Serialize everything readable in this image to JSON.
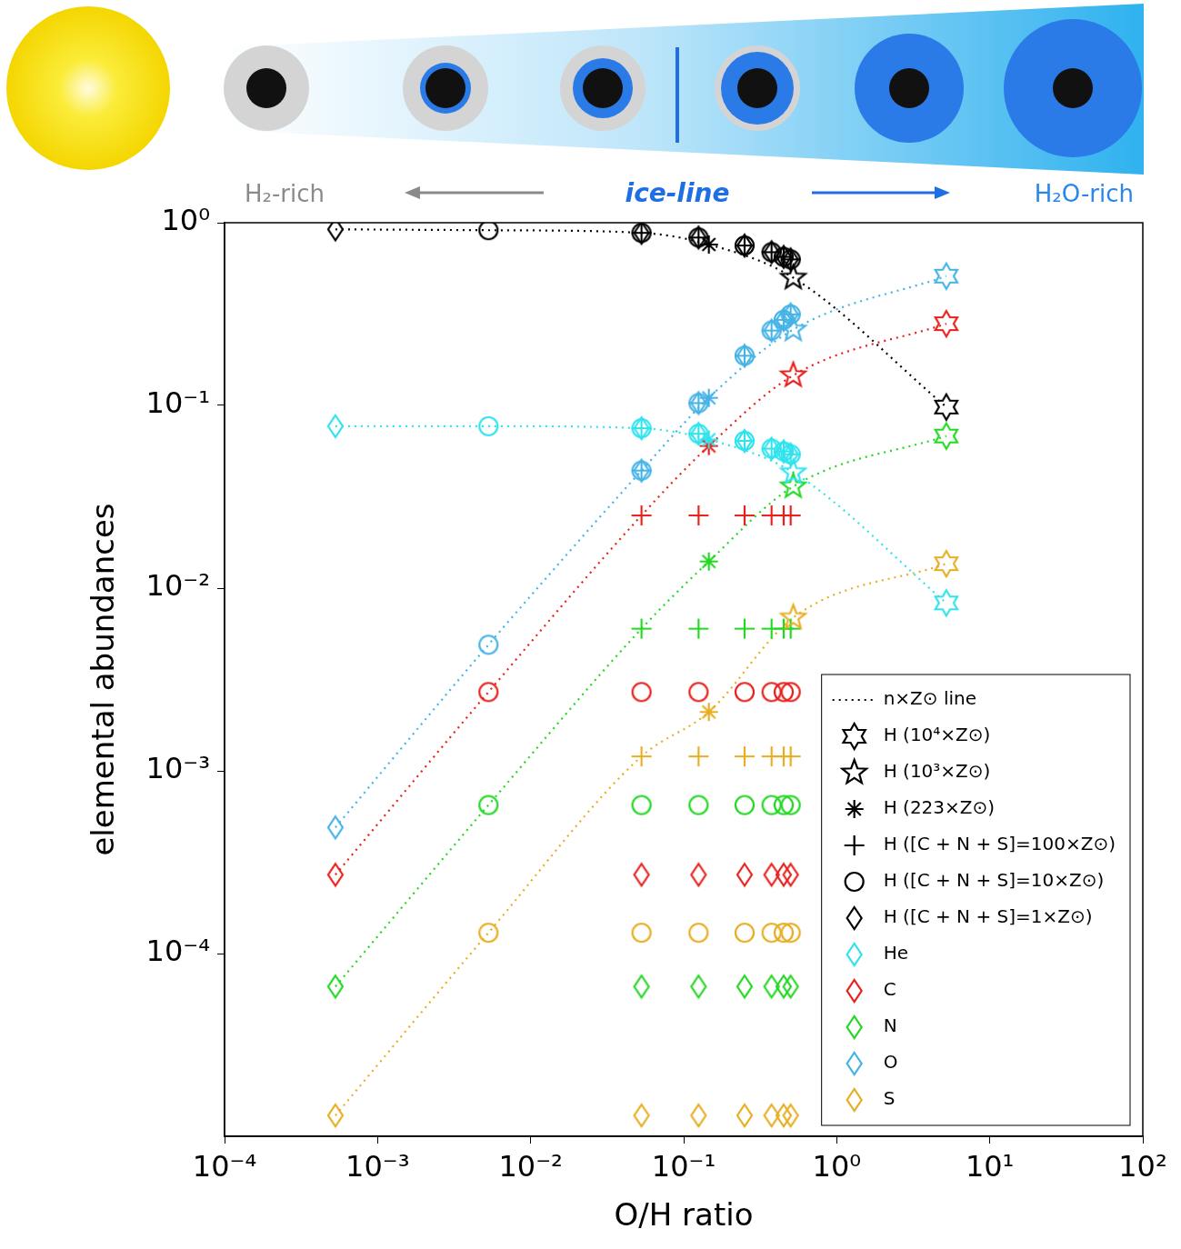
{
  "header": {
    "left_label": "H₂-rich",
    "center_label": "ice-line",
    "right_label": "H₂O-rich"
  },
  "chart_data": {
    "type": "scatter",
    "xlabel": "O/H ratio",
    "ylabel": "elemental abundances",
    "log": true,
    "grid": false,
    "legend": "lower right",
    "xlim": [
      0.0001,
      100
    ],
    "xticks": [
      {
        "value": 0.0001,
        "label": "10⁻⁴"
      },
      {
        "value": 0.001,
        "label": "10⁻³"
      },
      {
        "value": 0.01,
        "label": "10⁻²"
      },
      {
        "value": 0.1,
        "label": "10⁻¹"
      },
      {
        "value": 1,
        "label": "10⁰"
      },
      {
        "value": 10,
        "label": "10¹"
      },
      {
        "value": 100,
        "label": "10²"
      }
    ],
    "ylim": [
      1e-05,
      1
    ],
    "yticks": [
      {
        "value": 0.0001,
        "label": "10⁻⁴"
      },
      {
        "value": 0.001,
        "label": "10⁻³"
      },
      {
        "value": 0.01,
        "label": "10⁻²"
      },
      {
        "value": 0.1,
        "label": "10⁻¹"
      },
      {
        "value": 1,
        "label": "10⁰"
      }
    ],
    "elements": [
      {
        "name": "He",
        "color": "#2fe3ee",
        "marker": "diamond"
      },
      {
        "name": "C",
        "color": "#e8201c",
        "marker": "diamond"
      },
      {
        "name": "N",
        "color": "#22d822",
        "marker": "diamond"
      },
      {
        "name": "O",
        "color": "#45b3e6",
        "marker": "diamond"
      },
      {
        "name": "S",
        "color": "#e8ae22",
        "marker": "diamond"
      }
    ],
    "line": {
      "name": "n×Z⊙ line",
      "line_style": "dotted",
      "color": "#000000",
      "x": [
        0.00053,
        0.0053,
        0.053,
        0.146,
        0.52,
        5.2
      ],
      "values": [
        0.92,
        0.91,
        0.88,
        0.76,
        0.5,
        0.098
      ],
      "elements": {
        "He": [
          0.077,
          0.077,
          0.075,
          0.065,
          0.043,
          0.0083
        ],
        "C": [
          0.00027,
          0.0027,
          0.025,
          0.06,
          0.146,
          0.28
        ],
        "N": [
          6.6e-05,
          0.00065,
          0.006,
          0.014,
          0.036,
          0.068
        ],
        "O": [
          0.00049,
          0.0049,
          0.044,
          0.11,
          0.26,
          0.51
        ],
        "S": [
          1.3e-05,
          0.00013,
          0.0012,
          0.0021,
          0.0069,
          0.0136
        ]
      }
    },
    "series": [
      {
        "name": "H (10⁴×Z⊙)",
        "marker": "hexagram",
        "color": "#000000",
        "x": [
          5.2
        ],
        "values": [
          0.098
        ],
        "elements": {
          "He": [
            0.0083
          ],
          "C": [
            0.28
          ],
          "N": [
            0.068
          ],
          "O": [
            0.51
          ],
          "S": [
            0.0136
          ]
        }
      },
      {
        "name": "H (10³×Z⊙)",
        "marker": "pentagram",
        "color": "#000000",
        "x": [
          0.52
        ],
        "values": [
          0.5
        ],
        "elements": {
          "He": [
            0.043
          ],
          "C": [
            0.146
          ],
          "N": [
            0.036
          ],
          "O": [
            0.26
          ],
          "S": [
            0.0069
          ]
        }
      },
      {
        "name": "H (223×Z⊙)",
        "marker": "asterisk",
        "color": "#000000",
        "x": [
          0.146
        ],
        "values": [
          0.76
        ],
        "elements": {
          "He": [
            0.065
          ],
          "C": [
            0.06
          ],
          "N": [
            0.014
          ],
          "O": [
            0.11
          ],
          "S": [
            0.0021
          ]
        }
      },
      {
        "name": "H ([C + N + S]=100×Z⊙)",
        "marker": "plus",
        "color": "#000000",
        "x": [
          0.053,
          0.125,
          0.25,
          0.375,
          0.45,
          0.5
        ],
        "values": [
          0.88,
          0.83,
          0.75,
          0.69,
          0.65,
          0.63
        ],
        "elements": {
          "He": [
            0.075,
            0.07,
            0.064,
            0.058,
            0.056,
            0.054
          ],
          "C": [
            0.025,
            0.025,
            0.025,
            0.025,
            0.025,
            0.025
          ],
          "N": [
            0.006,
            0.006,
            0.006,
            0.006,
            0.006,
            0.006
          ],
          "O": [
            0.044,
            0.103,
            0.187,
            0.257,
            0.294,
            0.315
          ],
          "S": [
            0.0012,
            0.0012,
            0.0012,
            0.0012,
            0.0012,
            0.0012
          ]
        }
      },
      {
        "name": "H ([C + N + S]=10×Z⊙)",
        "marker": "circle",
        "color": "#000000",
        "x": [
          0.0053,
          0.053,
          0.125,
          0.25,
          0.375,
          0.45,
          0.5
        ],
        "values": [
          0.91,
          0.88,
          0.83,
          0.75,
          0.69,
          0.65,
          0.63
        ],
        "elements": {
          "He": [
            0.077,
            0.075,
            0.07,
            0.064,
            0.058,
            0.056,
            0.054
          ],
          "C": [
            0.0027,
            0.0027,
            0.0027,
            0.0027,
            0.0027,
            0.0027,
            0.0027
          ],
          "N": [
            0.00065,
            0.00065,
            0.00065,
            0.00065,
            0.00065,
            0.00065,
            0.00065
          ],
          "O": [
            0.0049,
            0.044,
            0.103,
            0.187,
            0.257,
            0.294,
            0.315
          ],
          "S": [
            0.00013,
            0.00013,
            0.00013,
            0.00013,
            0.00013,
            0.00013,
            0.00013
          ]
        }
      },
      {
        "name": "H ([C + N + S]=1×Z⊙)",
        "marker": "diamond",
        "color": "#000000",
        "x": [
          0.00053,
          0.053,
          0.125,
          0.25,
          0.375,
          0.45,
          0.5
        ],
        "values": [
          0.92,
          0.88,
          0.83,
          0.75,
          0.69,
          0.65,
          0.63
        ],
        "elements": {
          "He": [
            0.077,
            0.075,
            0.07,
            0.064,
            0.058,
            0.056,
            0.054
          ],
          "C": [
            0.00027,
            0.00027,
            0.00027,
            0.00027,
            0.00027,
            0.00027,
            0.00027
          ],
          "N": [
            6.6e-05,
            6.6e-05,
            6.6e-05,
            6.6e-05,
            6.6e-05,
            6.6e-05,
            6.6e-05
          ],
          "O": [
            0.00049,
            0.044,
            0.103,
            0.187,
            0.257,
            0.294,
            0.315
          ],
          "S": [
            1.3e-05,
            1.3e-05,
            1.3e-05,
            1.3e-05,
            1.3e-05,
            1.3e-05,
            1.3e-05
          ]
        }
      }
    ]
  }
}
